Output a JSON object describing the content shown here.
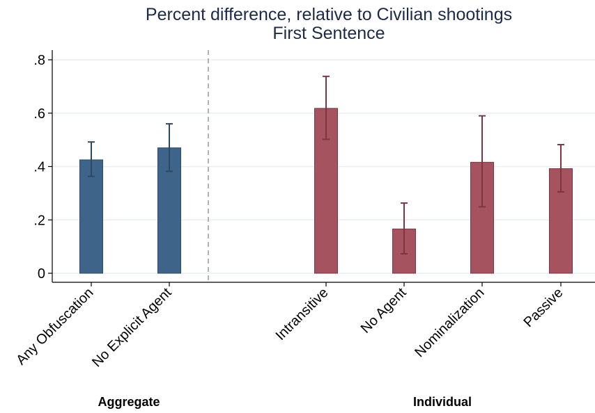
{
  "chart_data": {
    "type": "bar",
    "title": "Percent difference, relative to Civilian shootings",
    "subtitle": "First Sentence",
    "ylim": [
      -0.03,
      0.84
    ],
    "yticks": [
      0,
      0.2,
      0.4,
      0.6,
      0.8
    ],
    "ytick_labels": [
      "0",
      ".2",
      ".4",
      ".6",
      ".8"
    ],
    "grid": true,
    "categories": [
      "Any Obfuscation",
      "No Explicit Agent",
      "Intransitive",
      "No Agent",
      "Nominalization",
      "Passive"
    ],
    "groups": [
      {
        "name": "Aggregate",
        "categories": [
          "Any Obfuscation",
          "No Explicit Agent"
        ],
        "color": "#3e6589"
      },
      {
        "name": "Individual",
        "categories": [
          "Intransitive",
          "No Agent",
          "Nominalization",
          "Passive"
        ],
        "color": "#a5535e"
      }
    ],
    "values": [
      0.425,
      0.47,
      0.618,
      0.166,
      0.416,
      0.392
    ],
    "ci_low": [
      0.363,
      0.382,
      0.502,
      0.073,
      0.249,
      0.305
    ],
    "ci_high": [
      0.492,
      0.56,
      0.738,
      0.263,
      0.59,
      0.482
    ]
  },
  "colors": {
    "aggregate_bar": "#3e6589",
    "aggregate_edge": "#2b4a68",
    "individual_bar": "#a5535e",
    "individual_edge": "#7d3540",
    "title": "#1c2a48",
    "grid": "#e8eef2"
  }
}
